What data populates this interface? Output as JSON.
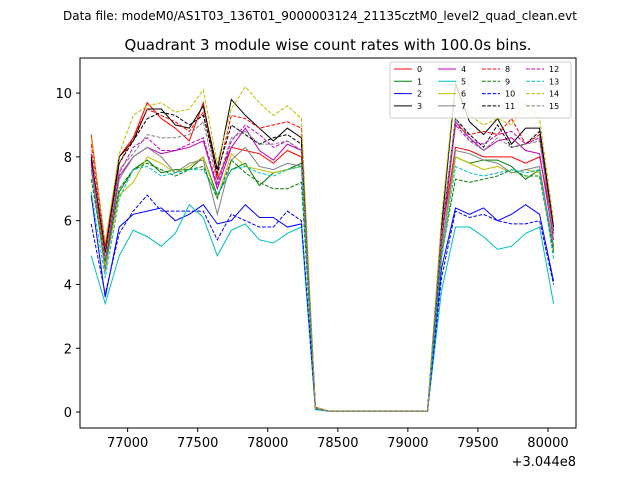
{
  "chart_data": {
    "type": "line",
    "suptitle": "Data file: modeM0/AS1T03_136T01_9000003124_21135cztM0_level2_quad_clean.evt",
    "title": "Quadrant 3 module wise count rates with 100.0s bins.",
    "xlabel": "",
    "ylabel": "",
    "x_offset_label": "+3.044e8",
    "xlim": [
      76660,
      80200
    ],
    "ylim": [
      -0.5,
      11.1
    ],
    "xticks": [
      77000,
      77500,
      78000,
      78500,
      79000,
      79500,
      80000
    ],
    "xtick_labels": [
      "77000",
      "77500",
      "78000",
      "78500",
      "79000",
      "79500",
      "80000"
    ],
    "yticks": [
      0,
      2,
      4,
      6,
      8,
      10
    ],
    "ytick_labels": [
      "0",
      "2",
      "4",
      "6",
      "8",
      "10"
    ],
    "grid": false,
    "legend_position": "top-right",
    "x": [
      76740,
      76840,
      76940,
      77040,
      77140,
      77240,
      77340,
      77440,
      77540,
      77640,
      77740,
      77840,
      77940,
      78040,
      78140,
      78240,
      78340,
      78440,
      78540,
      78640,
      78740,
      78840,
      78940,
      79040,
      79140,
      79240,
      79340,
      79440,
      79540,
      79640,
      79740,
      79840,
      79940,
      80040
    ],
    "series": [
      {
        "name": "0",
        "color": "#ff0000",
        "dash": "solid",
        "values": [
          8.7,
          5.2,
          8.0,
          8.6,
          9.7,
          9.2,
          8.9,
          8.5,
          9.7,
          7.3,
          8.3,
          8.2,
          8.1,
          7.8,
          8.2,
          8.0,
          0.15,
          0.02,
          0.02,
          0.02,
          0.02,
          0.02,
          0.02,
          0.02,
          0.02,
          5.5,
          8.3,
          8.2,
          8.0,
          8.0,
          8.0,
          7.8,
          8.0,
          5.8
        ]
      },
      {
        "name": "1",
        "color": "#008000",
        "dash": "solid",
        "values": [
          7.8,
          4.5,
          6.9,
          7.6,
          7.9,
          7.5,
          7.6,
          7.6,
          8.0,
          6.8,
          7.6,
          7.8,
          7.1,
          7.5,
          7.6,
          7.8,
          0.12,
          0.02,
          0.02,
          0.02,
          0.02,
          0.02,
          0.02,
          0.02,
          0.02,
          5.0,
          8.0,
          7.8,
          7.9,
          7.9,
          7.7,
          7.3,
          7.6,
          5.2
        ]
      },
      {
        "name": "2",
        "color": "#0000ff",
        "dash": "solid",
        "values": [
          6.8,
          3.6,
          5.8,
          6.2,
          6.3,
          6.4,
          6.0,
          6.2,
          6.5,
          5.9,
          6.0,
          6.5,
          6.1,
          6.1,
          5.8,
          5.9,
          0.1,
          0.02,
          0.02,
          0.02,
          0.02,
          0.02,
          0.02,
          0.02,
          0.02,
          4.5,
          6.4,
          6.2,
          6.4,
          6.0,
          6.2,
          6.5,
          6.2,
          4.1
        ]
      },
      {
        "name": "3",
        "color": "#000000",
        "dash": "solid",
        "values": [
          7.9,
          5.0,
          8.0,
          8.5,
          9.5,
          9.5,
          9.0,
          8.9,
          9.6,
          7.6,
          9.8,
          9.3,
          8.9,
          8.5,
          8.9,
          8.6,
          0.12,
          0.02,
          0.02,
          0.02,
          0.02,
          0.02,
          0.02,
          0.02,
          0.02,
          5.8,
          10.3,
          9.1,
          8.7,
          9.2,
          8.4,
          8.9,
          8.9,
          5.8
        ]
      },
      {
        "name": "4",
        "color": "#bf00bf",
        "dash": "solid",
        "values": [
          8.1,
          4.6,
          7.4,
          8.0,
          8.3,
          8.1,
          8.2,
          8.3,
          8.5,
          7.0,
          8.3,
          8.9,
          8.2,
          7.9,
          8.4,
          8.2,
          0.12,
          0.02,
          0.02,
          0.02,
          0.02,
          0.02,
          0.02,
          0.02,
          0.02,
          5.3,
          9.1,
          8.6,
          8.2,
          8.5,
          8.6,
          8.2,
          8.1,
          5.4
        ]
      },
      {
        "name": "5",
        "color": "#00bfbf",
        "dash": "solid",
        "values": [
          4.9,
          3.4,
          4.9,
          5.7,
          5.5,
          5.2,
          5.6,
          6.5,
          6.1,
          4.9,
          5.7,
          5.9,
          5.4,
          5.3,
          5.6,
          5.8,
          0.08,
          0.02,
          0.02,
          0.02,
          0.02,
          0.02,
          0.02,
          0.02,
          0.02,
          3.8,
          5.8,
          5.8,
          5.5,
          5.1,
          5.2,
          5.6,
          5.8,
          3.4
        ]
      },
      {
        "name": "6",
        "color": "#bfbf00",
        "dash": "solid",
        "values": [
          7.7,
          4.6,
          6.8,
          7.2,
          8.0,
          7.8,
          7.5,
          7.7,
          8.0,
          6.7,
          8.1,
          7.7,
          7.6,
          7.5,
          7.6,
          7.7,
          0.12,
          0.02,
          0.02,
          0.02,
          0.02,
          0.02,
          0.02,
          0.02,
          0.02,
          5.0,
          8.0,
          7.8,
          7.6,
          7.7,
          7.5,
          7.6,
          7.5,
          5.0
        ]
      },
      {
        "name": "7",
        "color": "#808080",
        "dash": "solid",
        "values": [
          7.6,
          4.4,
          7.3,
          8.0,
          8.3,
          8.0,
          7.5,
          7.8,
          7.9,
          6.2,
          7.9,
          8.3,
          7.7,
          7.6,
          7.8,
          7.7,
          0.12,
          0.02,
          0.02,
          0.02,
          0.02,
          0.02,
          0.02,
          0.02,
          0.02,
          5.1,
          8.2,
          8.1,
          7.9,
          7.8,
          7.5,
          7.6,
          7.7,
          5.1
        ]
      },
      {
        "name": "8",
        "color": "#ff0000",
        "dash": "dashed",
        "values": [
          8.4,
          5.0,
          7.8,
          8.6,
          9.5,
          9.3,
          9.1,
          8.8,
          9.4,
          7.4,
          9.3,
          9.2,
          8.9,
          9.0,
          9.1,
          8.9,
          0.15,
          0.02,
          0.02,
          0.02,
          0.02,
          0.02,
          0.02,
          0.02,
          0.02,
          5.6,
          9.0,
          8.7,
          8.8,
          8.7,
          9.2,
          8.4,
          8.7,
          5.6
        ]
      },
      {
        "name": "9",
        "color": "#008000",
        "dash": "dashed",
        "values": [
          7.3,
          4.7,
          7.0,
          7.6,
          7.8,
          7.6,
          7.4,
          7.6,
          7.7,
          6.7,
          7.9,
          7.5,
          7.2,
          7.0,
          7.0,
          7.2,
          0.12,
          0.02,
          0.02,
          0.02,
          0.02,
          0.02,
          0.02,
          0.02,
          0.02,
          4.9,
          7.3,
          7.2,
          7.3,
          7.4,
          7.6,
          7.4,
          7.4,
          5.0
        ]
      },
      {
        "name": "10",
        "color": "#0000ff",
        "dash": "dashed",
        "values": [
          5.9,
          3.7,
          5.6,
          6.3,
          6.8,
          6.3,
          6.3,
          6.3,
          6.3,
          5.4,
          6.2,
          6.0,
          5.8,
          5.8,
          6.3,
          6.0,
          0.1,
          0.02,
          0.02,
          0.02,
          0.02,
          0.02,
          0.02,
          0.02,
          0.02,
          4.2,
          6.3,
          6.1,
          6.2,
          6.0,
          5.9,
          5.9,
          6.0,
          4.0
        ]
      },
      {
        "name": "11",
        "color": "#000000",
        "dash": "dashed",
        "values": [
          8.0,
          5.0,
          7.8,
          8.5,
          9.2,
          9.4,
          9.3,
          9.0,
          9.3,
          7.5,
          9.0,
          8.7,
          8.4,
          8.6,
          8.7,
          8.4,
          0.12,
          0.02,
          0.02,
          0.02,
          0.02,
          0.02,
          0.02,
          0.02,
          0.02,
          5.6,
          9.2,
          8.7,
          8.3,
          9.0,
          8.3,
          8.4,
          8.8,
          5.7
        ]
      },
      {
        "name": "12",
        "color": "#bf00bf",
        "dash": "dashed",
        "values": [
          7.8,
          4.8,
          7.5,
          8.3,
          8.6,
          8.2,
          8.2,
          8.4,
          8.6,
          7.1,
          8.5,
          9.0,
          8.7,
          8.3,
          8.5,
          8.2,
          0.12,
          0.02,
          0.02,
          0.02,
          0.02,
          0.02,
          0.02,
          0.02,
          0.02,
          5.4,
          9.0,
          8.5,
          8.4,
          8.7,
          8.8,
          8.4,
          8.6,
          5.6
        ]
      },
      {
        "name": "13",
        "color": "#00bfbf",
        "dash": "dashed",
        "values": [
          6.9,
          4.2,
          6.7,
          7.6,
          7.7,
          7.4,
          7.5,
          7.6,
          7.6,
          6.8,
          7.6,
          7.7,
          7.5,
          7.4,
          7.6,
          7.7,
          0.1,
          0.02,
          0.02,
          0.02,
          0.02,
          0.02,
          0.02,
          0.02,
          0.02,
          4.8,
          7.7,
          7.5,
          7.4,
          7.5,
          7.6,
          7.5,
          7.6,
          4.8
        ]
      },
      {
        "name": "14",
        "color": "#bfbf00",
        "dash": "dashed",
        "values": [
          8.6,
          5.3,
          8.1,
          9.3,
          9.6,
          9.7,
          9.4,
          9.5,
          10.1,
          7.8,
          9.5,
          10.2,
          9.7,
          9.3,
          9.6,
          9.2,
          0.15,
          0.02,
          0.02,
          0.02,
          0.02,
          0.02,
          0.02,
          0.02,
          0.02,
          6.1,
          10.4,
          9.3,
          9.0,
          9.2,
          9.0,
          9.7,
          9.2,
          6.0
        ]
      },
      {
        "name": "15",
        "color": "#808080",
        "dash": "dashed",
        "values": [
          7.7,
          4.8,
          7.6,
          8.1,
          8.7,
          8.6,
          8.6,
          8.7,
          9.1,
          7.2,
          8.6,
          8.8,
          8.4,
          8.4,
          8.5,
          8.2,
          0.12,
          0.02,
          0.02,
          0.02,
          0.02,
          0.02,
          0.02,
          0.02,
          0.02,
          5.6,
          9.2,
          8.5,
          8.2,
          8.6,
          8.3,
          8.4,
          8.5,
          5.6
        ]
      }
    ]
  }
}
